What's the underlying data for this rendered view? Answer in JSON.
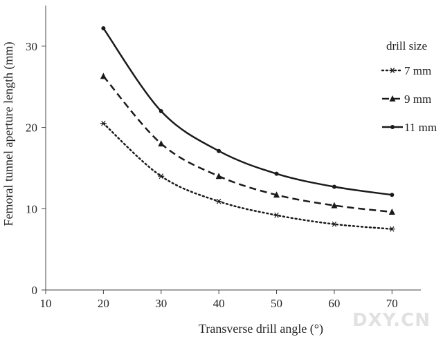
{
  "chart_data": {
    "type": "line",
    "xlabel": "Transverse drill angle (°)",
    "ylabel": "Femoral tunnel aperture length (mm)",
    "xlim": [
      10,
      75
    ],
    "ylim": [
      0,
      35
    ],
    "x_ticks": [
      10,
      20,
      30,
      40,
      50,
      60,
      70
    ],
    "y_ticks": [
      0,
      10,
      20,
      30
    ],
    "x": [
      20,
      30,
      40,
      50,
      60,
      70
    ],
    "series": [
      {
        "name": "7 mm",
        "values": [
          20.5,
          14.0,
          10.9,
          9.2,
          8.1,
          7.5
        ],
        "style": "dotted",
        "marker": "asterisk"
      },
      {
        "name": "9 mm",
        "values": [
          26.3,
          18.0,
          14.0,
          11.7,
          10.4,
          9.6
        ],
        "style": "dashed",
        "marker": "triangle"
      },
      {
        "name": "11 mm",
        "values": [
          32.2,
          22.0,
          17.1,
          14.3,
          12.7,
          11.7
        ],
        "style": "solid",
        "marker": "dot"
      }
    ],
    "legend": {
      "title": "drill size",
      "position": "right"
    },
    "grid": false,
    "line_color": "#1a1a1a"
  },
  "watermark": "DXY.CN"
}
